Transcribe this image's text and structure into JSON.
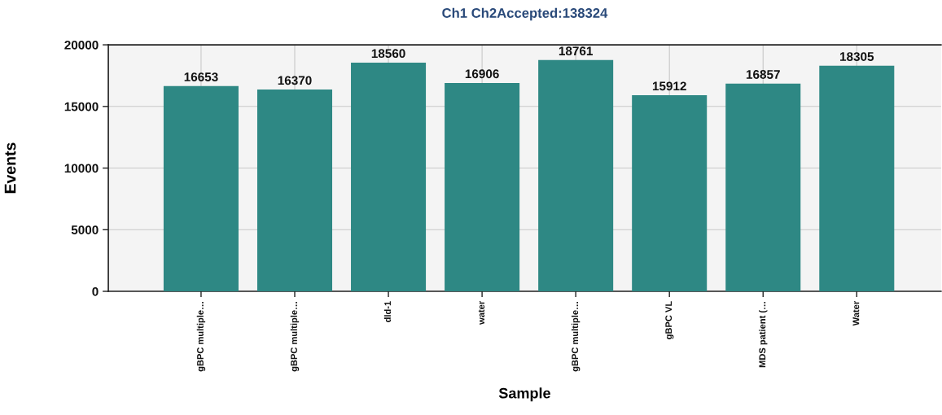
{
  "chart_data": {
    "type": "bar",
    "title": "Ch1 Ch2Accepted:138324",
    "xlabel": "Sample",
    "ylabel": "Events",
    "categories": [
      "gBPC multiple…",
      "gBPC multiple…",
      "dld-1",
      "water",
      "gBPC multiple…",
      "gBPC VL",
      "MDS patient (…",
      "Water"
    ],
    "values": [
      16653,
      16370,
      18560,
      16906,
      18761,
      15912,
      16857,
      18305
    ],
    "color": "#2e8884",
    "ylim": [
      0,
      20000
    ],
    "yticks": [
      0,
      5000,
      10000,
      15000,
      20000
    ],
    "grid": true,
    "data_labels": true
  }
}
